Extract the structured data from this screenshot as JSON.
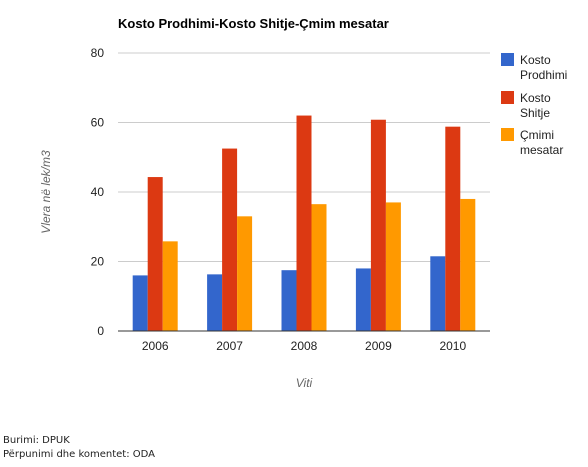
{
  "chart_data": {
    "type": "bar",
    "title": "Kosto Prodhimi-Kosto Shitje-Çmim mesatar",
    "xlabel": "Viti",
    "ylabel": "Vlera në lek/m3",
    "categories": [
      "2006",
      "2007",
      "2008",
      "2009",
      "2010"
    ],
    "ylim": [
      0,
      80
    ],
    "yticks": [
      "0",
      "20",
      "40",
      "60",
      "80"
    ],
    "grid": true,
    "legend_position": "right",
    "series": [
      {
        "name": "Kosto Prodhimi",
        "color": "#3366cc",
        "values": [
          16,
          16.3,
          17.5,
          18,
          21.5
        ]
      },
      {
        "name": "Kosto Shitje",
        "color": "#dc3912",
        "values": [
          44.3,
          52.5,
          62,
          60.8,
          58.8
        ]
      },
      {
        "name": "Çmimi mesatar",
        "color": "#ff9900",
        "values": [
          25.8,
          33,
          36.5,
          37,
          38
        ]
      }
    ]
  },
  "source": {
    "line1": "Burimi: DPUK",
    "line2": "Përpunimi dhe komentet: ODA"
  }
}
